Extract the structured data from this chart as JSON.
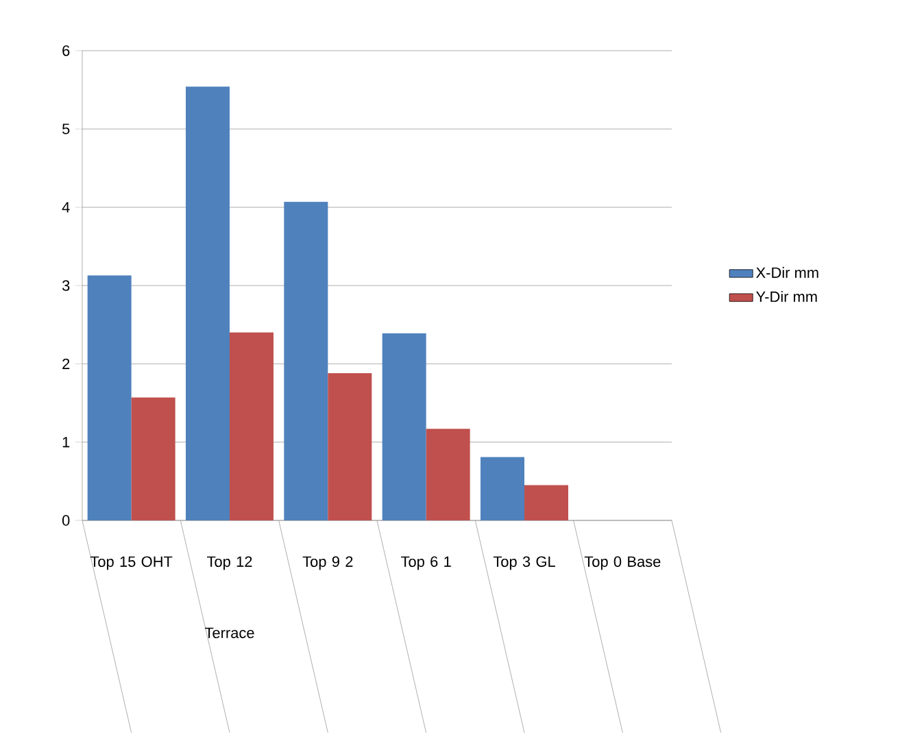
{
  "chart_data": {
    "type": "bar",
    "categories": [
      "Top 15 OHT",
      "Top 12 Terrace",
      "Top 9 2",
      "Top 6 1",
      "Top 3 GL",
      "Top 0 Base"
    ],
    "series": [
      {
        "name": "X-Dir mm",
        "color": "#4f81bd",
        "values": [
          3.13,
          5.54,
          4.07,
          2.39,
          0.81,
          0
        ]
      },
      {
        "name": "Y-Dir mm",
        "color": "#c0504d",
        "values": [
          1.57,
          2.4,
          1.88,
          1.17,
          0.45,
          0
        ]
      }
    ],
    "ylim": [
      0,
      6
    ],
    "yticks": [
      0,
      1,
      2,
      3,
      4,
      5,
      6
    ],
    "grid": "y",
    "legend": "right"
  }
}
